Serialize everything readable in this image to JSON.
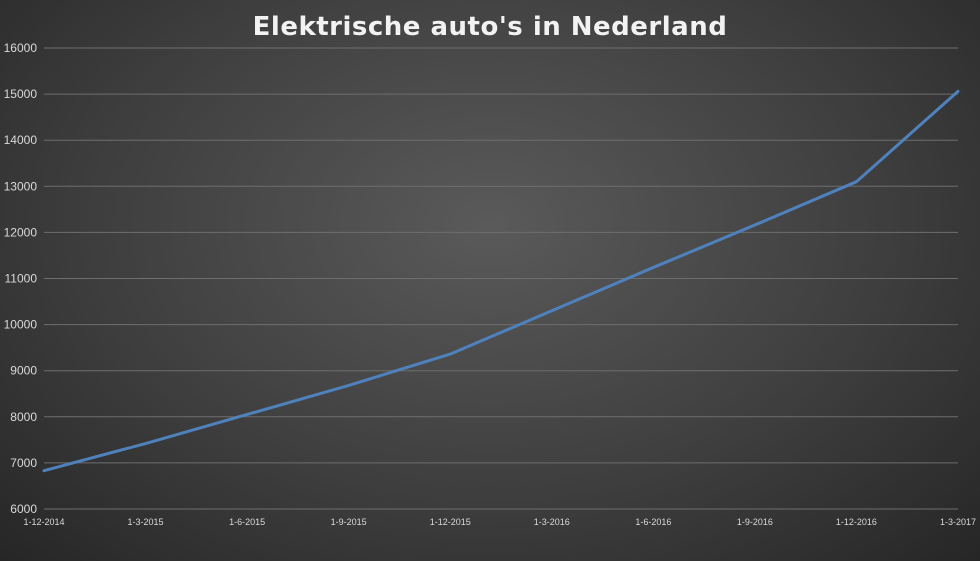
{
  "chart_data": {
    "type": "line",
    "title": "Elektrische auto's in Nederland",
    "xlabel": "",
    "ylabel": "",
    "categories": [
      "1-12-2014",
      "1-3-2015",
      "1-6-2015",
      "1-9-2015",
      "1-12-2015",
      "1-3-2016",
      "1-6-2016",
      "1-9-2016",
      "1-12-2016",
      "1-3-2017"
    ],
    "series": [
      {
        "values": [
          6830,
          7420,
          8050,
          8680,
          9360,
          10300,
          11240,
          12160,
          13100,
          15060
        ]
      }
    ],
    "ylim": [
      6000,
      16000
    ],
    "yticks": [
      6000,
      7000,
      8000,
      9000,
      10000,
      11000,
      12000,
      13000,
      14000,
      15000,
      16000
    ],
    "grid": true,
    "legend": "none",
    "colors": {
      "line": "#4f81bd",
      "background": "#404040",
      "grid": "#6e6e6e",
      "text": "#d9d9d9"
    }
  }
}
